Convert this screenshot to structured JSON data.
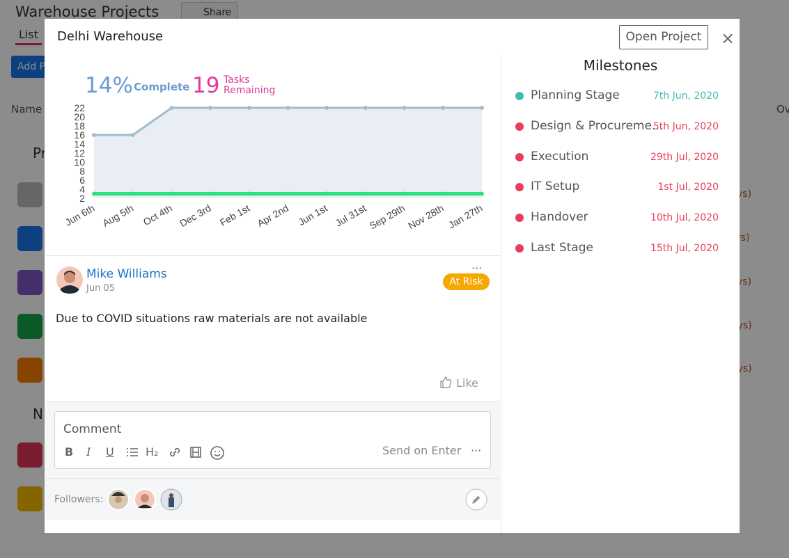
{
  "background": {
    "title": "Warehouse Projects",
    "share": "Share",
    "tab": "List",
    "add_button": "Add P",
    "column_name": "Name",
    "group_1": "Pr",
    "group_2": "N",
    "column_right": "Ov",
    "row_notes": [
      "ys)",
      "rs)",
      "ys)",
      "ays)",
      "ays)"
    ]
  },
  "modal": {
    "title": "Delhi Warehouse",
    "open_button": "Open Project",
    "close": "×",
    "stats": {
      "percent": "14%",
      "percent_label": "Complete",
      "tasks": "19",
      "tasks_label_1": "Tasks",
      "tasks_label_2": "Remaining"
    },
    "chart": {
      "type": "line",
      "categories": [
        "Jun 6th",
        "Aug 5th",
        "Oct 4th",
        "Dec 3rd",
        "Feb 1st",
        "Apr 2nd",
        "Jun 1st",
        "Jul 31st",
        "Sep 29th",
        "Nov 28th",
        "Jan 27th"
      ],
      "series": [
        {
          "color": "#a3bccf",
          "values": [
            16,
            16,
            22,
            22,
            22,
            22,
            22,
            22,
            22,
            22,
            22
          ]
        },
        {
          "color": "#2ee07e",
          "values": [
            3,
            3,
            3,
            3,
            3,
            3,
            3,
            3,
            3,
            3,
            3
          ]
        }
      ],
      "ylim": [
        2,
        22
      ],
      "yticks": [
        2,
        4,
        6,
        8,
        10,
        12,
        14,
        16,
        18,
        20,
        22
      ]
    },
    "post": {
      "author": "Mike Williams",
      "date": "Jun 05",
      "status": "At Risk",
      "more": "···",
      "body": "Due to COVID situations raw materials are not available",
      "like": "Like"
    },
    "comment": {
      "placeholder": "Comment",
      "toolbar": [
        "B",
        "I",
        "U",
        "H₂"
      ],
      "send": "Send on Enter",
      "more": "···"
    },
    "followers": {
      "label": "Followers:"
    },
    "milestones": {
      "title": "Milestones",
      "items": [
        {
          "name": "Planning Stage",
          "date": "7th Jun, 2020",
          "color": "#3cbfae"
        },
        {
          "name": "Design & Procureme...",
          "date": "5th Jun, 2020",
          "color": "#e83e5c"
        },
        {
          "name": "Execution",
          "date": "29th Jul, 2020",
          "color": "#e83e5c"
        },
        {
          "name": "IT Setup",
          "date": "1st Jul, 2020",
          "color": "#e83e5c"
        },
        {
          "name": "Handover",
          "date": "10th Jul, 2020",
          "color": "#e83e5c"
        },
        {
          "name": "Last Stage",
          "date": "15th Jul, 2020",
          "color": "#e83e5c"
        }
      ]
    }
  }
}
